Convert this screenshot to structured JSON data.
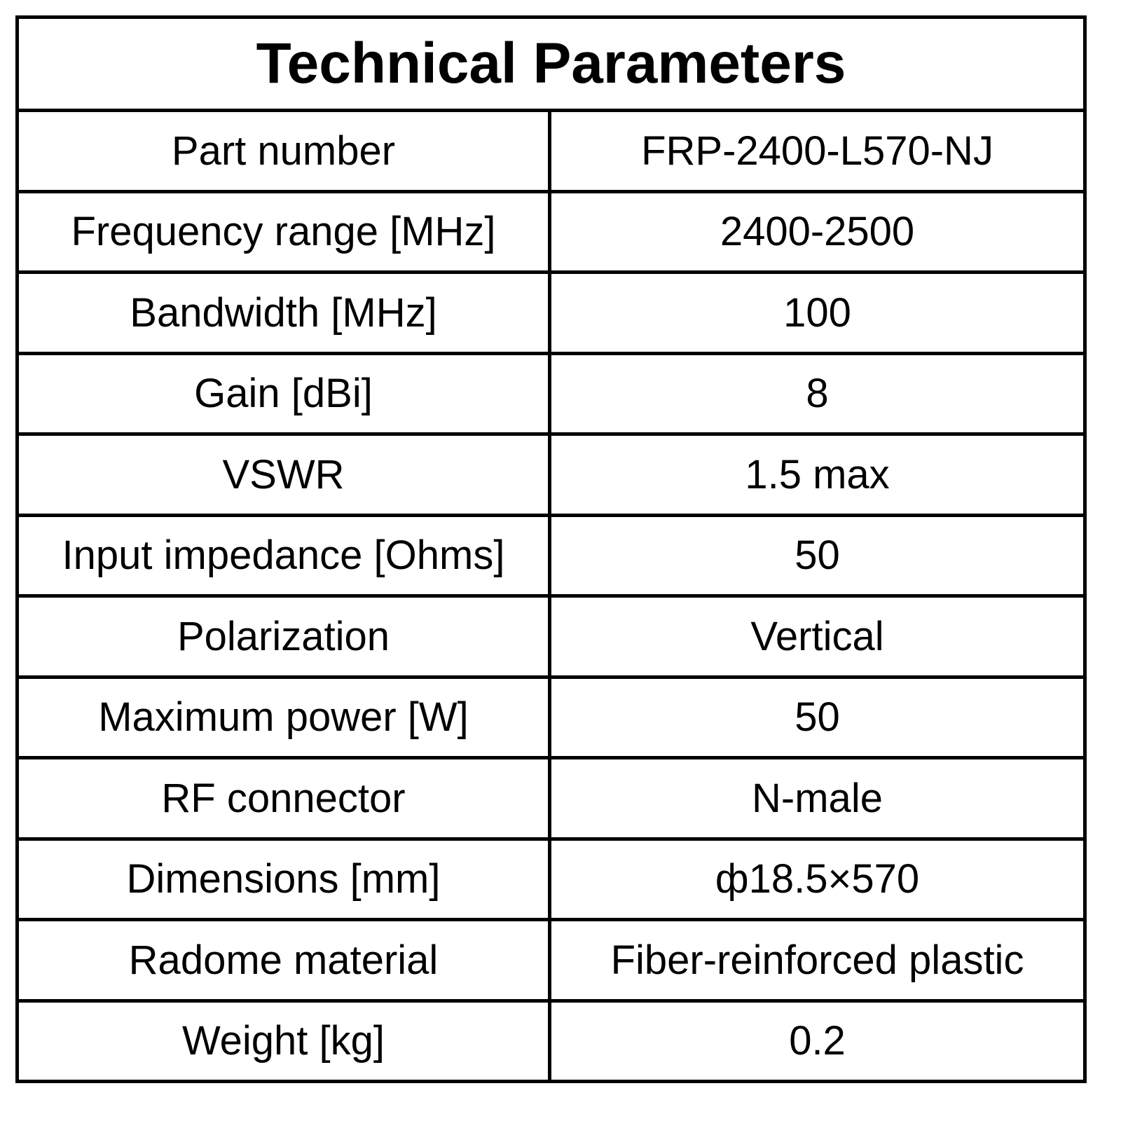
{
  "table": {
    "title": "Technical Parameters",
    "rows": [
      [
        "Part number",
        "FRP-2400-L570-NJ"
      ],
      [
        "Frequency range [MHz]",
        "2400-2500"
      ],
      [
        "Bandwidth [MHz]",
        "100"
      ],
      [
        "Gain [dBi]",
        "8"
      ],
      [
        "VSWR",
        "1.5 max"
      ],
      [
        "Input impedance [Ohms]",
        "50"
      ],
      [
        "Polarization",
        "Vertical"
      ],
      [
        "Maximum power [W]",
        "50"
      ],
      [
        "RF connector",
        "N-male"
      ],
      [
        "Dimensions [mm]",
        "ф18.5×570"
      ],
      [
        "Radome material",
        "Fiber-reinforced plastic"
      ],
      [
        "Weight [kg]",
        "0.2"
      ]
    ]
  }
}
